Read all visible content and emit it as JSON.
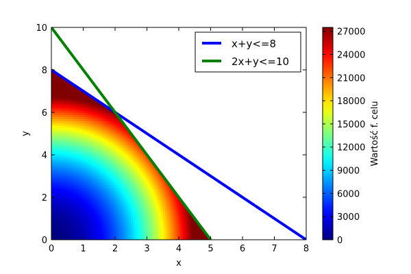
{
  "chart_data": {
    "type": "heatmap",
    "xlabel": "x",
    "ylabel": "y",
    "xlim": [
      0,
      8
    ],
    "ylim": [
      0,
      10
    ],
    "x_ticks": [
      0,
      1,
      2,
      3,
      4,
      5,
      6,
      7,
      8
    ],
    "y_ticks": [
      0,
      2,
      4,
      6,
      8,
      10
    ],
    "feasible_region": {
      "constraints": [
        "x + y <= 8",
        "2x + y <= 10",
        "x >= 0",
        "y >= 0"
      ],
      "vertices": [
        [
          0,
          0
        ],
        [
          0,
          8
        ],
        [
          2,
          6
        ],
        [
          5,
          0
        ]
      ],
      "fill_values_min": 0,
      "fill_values_max": 27500
    },
    "series": [
      {
        "name": "x+y<=8",
        "color": "#0000ff",
        "x": [
          0,
          8
        ],
        "y": [
          8,
          0
        ]
      },
      {
        "name": "2x+y<=10",
        "color": "#008000",
        "x": [
          0,
          5
        ],
        "y": [
          10,
          0
        ]
      }
    ],
    "colorbar": {
      "label": "Wartość f. celu",
      "colormap": "jet",
      "vmin": 0,
      "vmax": 27500,
      "ticks": [
        0,
        3000,
        6000,
        9000,
        12000,
        15000,
        18000,
        21000,
        24000,
        27000
      ]
    },
    "legend": {
      "position": "top-right"
    },
    "grid": false
  }
}
